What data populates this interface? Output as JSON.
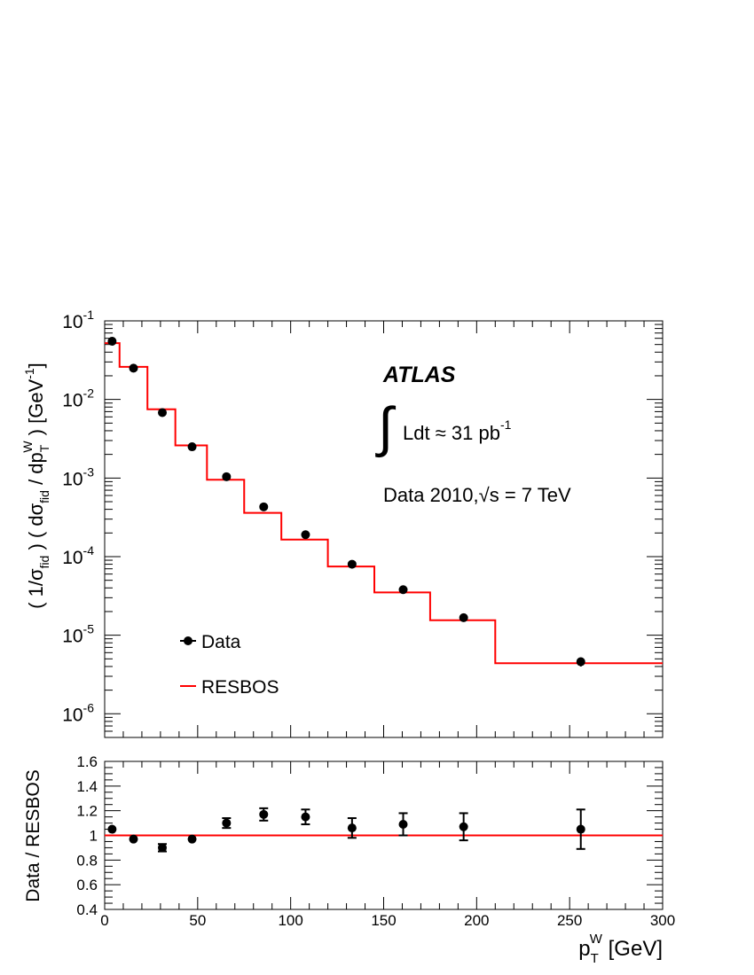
{
  "chart_data": [
    {
      "type": "scatter",
      "panel": "main",
      "log_y": true,
      "xlim": [
        0,
        300
      ],
      "ylim": [
        5e-07,
        0.1
      ],
      "y_ticks": [
        {
          "value": 0.1,
          "base": "10",
          "exp": "-1"
        },
        {
          "value": 0.01,
          "base": "10",
          "exp": "-2"
        },
        {
          "value": 0.001,
          "base": "10",
          "exp": "-3"
        },
        {
          "value": 0.0001,
          "base": "10",
          "exp": "-4"
        },
        {
          "value": 1e-05,
          "base": "10",
          "exp": "-5"
        },
        {
          "value": 1e-06,
          "base": "10",
          "exp": "-6"
        }
      ],
      "ylabel": {
        "open": "( 1/σ",
        "sub1": "fid",
        "mid": " ) ( dσ",
        "sub2": "fid",
        "mid2": " / dp",
        "sub3": "T",
        "sup3": "W",
        "close": " )  [GeV",
        "sup_unit": "-1",
        "end": "]"
      },
      "annotations": {
        "experiment": "ATLAS",
        "integral_sign": "∫",
        "lumi_text": "Ldt ≈ 31 pb",
        "lumi_sup": "-1",
        "energy_prefix": "Data 2010,",
        "sqrt_sign": "√",
        "energy_suffix": "s = 7 TeV"
      },
      "legend": {
        "placement": "bottom-left",
        "entries": [
          {
            "label": "Data",
            "style": "marker"
          },
          {
            "label": "RESBOS",
            "style": "line"
          }
        ]
      },
      "series": [
        {
          "name": "Data",
          "color": "#000000",
          "x": [
            4,
            15.5,
            31,
            47,
            65.5,
            85.5,
            108,
            133,
            160.5,
            193,
            256
          ],
          "y": [
            0.055,
            0.025,
            0.0068,
            0.0025,
            0.00104,
            0.00043,
            0.00019,
            8e-05,
            3.8e-05,
            1.67e-05,
            4.6e-06
          ],
          "y_low": [
            0.0535,
            0.0244,
            0.0066,
            0.00243,
            0.00101,
            0.000415,
            0.000183,
            7.65e-05,
            3.62e-05,
            1.58e-05,
            4e-06
          ],
          "y_high": [
            0.0565,
            0.0256,
            0.007,
            0.00257,
            0.00107,
            0.000445,
            0.000197,
            8.35e-05,
            3.98e-05,
            1.76e-05,
            5.2e-06
          ]
        },
        {
          "name": "RESBOS",
          "color": "#ff0000",
          "type": "step",
          "bin_edges": [
            0,
            8,
            23,
            38,
            55,
            75,
            95,
            120,
            145,
            175,
            210,
            300
          ],
          "values": [
            0.052,
            0.026,
            0.0075,
            0.0026,
            0.00095,
            0.00036,
            0.000165,
            7.5e-05,
            3.5e-05,
            1.55e-05,
            4.4e-06
          ]
        }
      ]
    },
    {
      "type": "scatter",
      "panel": "ratio",
      "xlim": [
        0,
        300
      ],
      "ylim": [
        0.4,
        1.6
      ],
      "x_ticks": [
        0,
        50,
        100,
        150,
        200,
        250,
        300
      ],
      "y_ticks": [
        0.4,
        0.6,
        0.8,
        1,
        1.2,
        1.4,
        1.6
      ],
      "y_tick_labels": [
        "0.4",
        "0.6",
        "0.8",
        "1",
        "1.2",
        "1.4",
        "1.6"
      ],
      "ylabel": "Data / RESBOS",
      "xlabel": {
        "p": "p",
        "sub": "T",
        "sup": "W",
        "unit": " [GeV]"
      },
      "reference_line": {
        "y": 1,
        "color": "#ff0000"
      },
      "series": [
        {
          "name": "Data / RESBOS",
          "color": "#000000",
          "x": [
            4,
            15.5,
            31,
            47,
            65.5,
            85.5,
            108,
            133,
            160.5,
            193,
            256
          ],
          "y": [
            1.05,
            0.97,
            0.9,
            0.97,
            1.1,
            1.17,
            1.15,
            1.06,
            1.09,
            1.07,
            1.05
          ],
          "err": [
            0.01,
            0.01,
            0.03,
            0.01,
            0.04,
            0.05,
            0.06,
            0.08,
            0.09,
            0.11,
            0.16
          ]
        }
      ]
    }
  ]
}
